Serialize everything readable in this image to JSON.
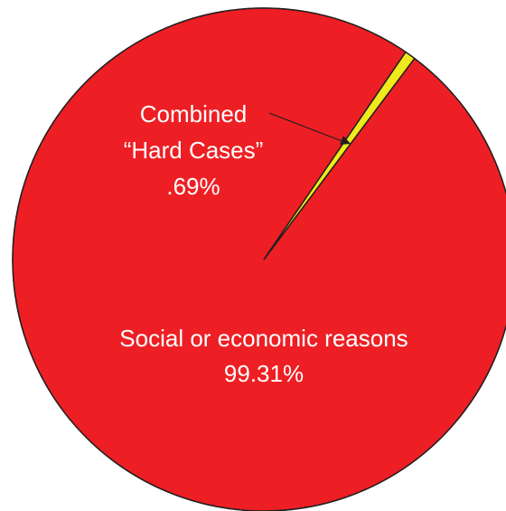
{
  "chart_data": {
    "type": "pie",
    "slices": [
      {
        "name": "Combined “Hard Cases”",
        "label_lines": [
          "Combined",
          "“Hard Cases”"
        ],
        "value": 0.69,
        "value_label": ".69%",
        "color": "#f0ea1c"
      },
      {
        "name": "Social or economic reasons",
        "label_lines": [
          "Social or economic reasons"
        ],
        "value": 99.31,
        "value_label": "99.31%",
        "color": "#ed1f24"
      }
    ]
  }
}
